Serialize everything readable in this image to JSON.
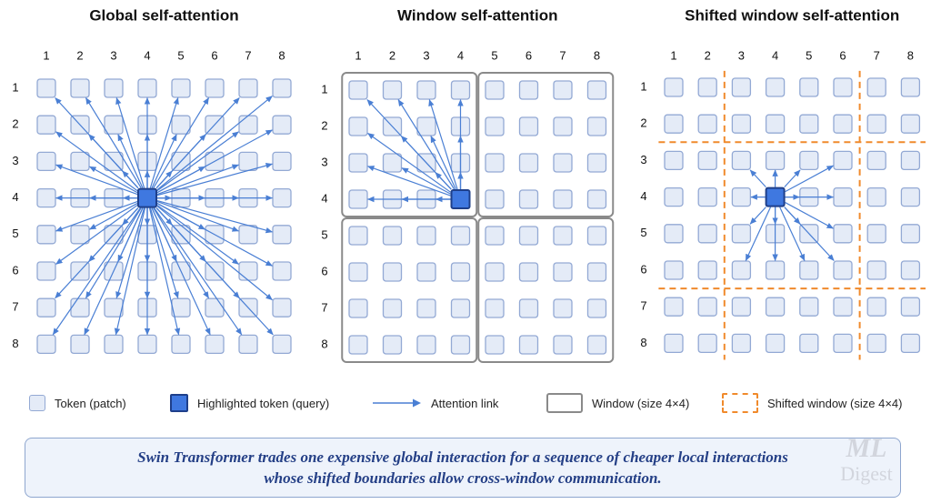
{
  "panels": [
    {
      "id": "global",
      "title": "Global self-attention"
    },
    {
      "id": "window",
      "title": "Window self-attention"
    },
    {
      "id": "shifted",
      "title": "Shifted window self-attention"
    }
  ],
  "grid": {
    "rows": [
      "1",
      "2",
      "3",
      "4",
      "5",
      "6",
      "7",
      "8"
    ],
    "cols": [
      "1",
      "2",
      "3",
      "4",
      "5",
      "6",
      "7",
      "8"
    ],
    "query": {
      "row": 4,
      "col": 4
    },
    "window_size": 4,
    "shift_offset": 2
  },
  "legend": {
    "token": "Token (patch)",
    "query": "Highlighted token (query)",
    "link": "Attention link",
    "window": "Window (size 4×4)",
    "shifted": "Shifted window (size 4×4)"
  },
  "caption": {
    "line1": "Swin Transformer trades one expensive global interaction for a sequence of cheaper local interactions",
    "line2": "whose shifted boundaries allow cross-window communication."
  },
  "watermark": {
    "line1": "ML",
    "line2": "Digest"
  },
  "colors": {
    "token_fill": "#e4ebf7",
    "token_stroke": "#93a9d4",
    "query_fill": "#3f78e0",
    "query_stroke": "#1e3f8a",
    "arrow": "#4a7fd4",
    "window_border": "#8a8a8a",
    "shifted_border": "#f08a2c"
  }
}
